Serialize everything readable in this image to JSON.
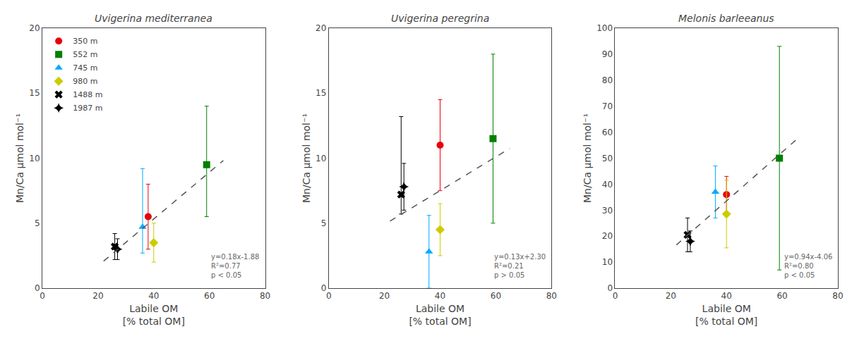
{
  "chart_data": [
    {
      "type": "scatter",
      "title": "Uvigerina mediterranea",
      "xlabel": "Labile OM\n[% total OM]",
      "ylabel": "Mn/Ca μmol mol⁻¹",
      "xlim": [
        0,
        80
      ],
      "xticks": [
        0,
        20,
        40,
        60,
        80
      ],
      "ylim": [
        0,
        20
      ],
      "yticks": [
        0,
        5,
        10,
        15,
        20
      ],
      "grid": false,
      "legend": "upper left",
      "annotations": [
        "y=0.18x-1.88\nR²=0.77\np < 0.05"
      ],
      "series": [
        {
          "name": "350 m",
          "color": "#e8000d",
          "marker": "circle",
          "x": [
            38
          ],
          "values": [
            5.5
          ],
          "yerr_low": [
            2.5
          ],
          "yerr_high": [
            2.5
          ]
        },
        {
          "name": "552 m",
          "color": "#008000",
          "marker": "square",
          "x": [
            59
          ],
          "values": [
            9.5
          ],
          "yerr_low": [
            4.0
          ],
          "yerr_high": [
            4.5
          ]
        },
        {
          "name": "745 m",
          "color": "#00aaff",
          "marker": "triangle-up",
          "x": [
            36
          ],
          "values": [
            4.7
          ],
          "yerr_low": [
            2.0
          ],
          "yerr_high": [
            4.5
          ]
        },
        {
          "name": "980 m",
          "color": "#cccc00",
          "marker": "diamond",
          "x": [
            40
          ],
          "values": [
            3.5
          ],
          "yerr_low": [
            1.5
          ],
          "yerr_high": [
            1.5
          ]
        },
        {
          "name": "1488 m",
          "color": "#000000",
          "marker": "x",
          "x": [
            26
          ],
          "values": [
            3.2
          ],
          "yerr_low": [
            1.0
          ],
          "yerr_high": [
            1.0
          ]
        },
        {
          "name": "1987 m",
          "color": "#000000",
          "marker": "star-diamond",
          "x": [
            27
          ],
          "values": [
            3.0
          ],
          "yerr_low": [
            0.8
          ],
          "yerr_high": [
            0.8
          ]
        },
        {
          "type": "line",
          "line_style": "dashed",
          "color": "#555555",
          "x": [
            22,
            65
          ],
          "values": [
            2.08,
            9.82
          ]
        }
      ]
    },
    {
      "type": "scatter",
      "title": "Uvigerina peregrina",
      "xlabel": "Labile OM\n[% total OM]",
      "ylabel": "Mn/Ca μmol mol⁻¹",
      "xlim": [
        0,
        80
      ],
      "xticks": [
        0,
        20,
        40,
        60,
        80
      ],
      "ylim": [
        0,
        20
      ],
      "yticks": [
        0,
        5,
        10,
        15,
        20
      ],
      "grid": false,
      "annotations": [
        "y=0.13x+2.30\nR²=0.21\np > 0.05"
      ],
      "series": [
        {
          "name": "350 m",
          "color": "#e8000d",
          "marker": "circle",
          "x": [
            40
          ],
          "values": [
            11.0
          ],
          "yerr_low": [
            3.5
          ],
          "yerr_high": [
            3.5
          ]
        },
        {
          "name": "552 m",
          "color": "#008000",
          "marker": "square",
          "x": [
            59
          ],
          "values": [
            11.5
          ],
          "yerr_low": [
            6.5
          ],
          "yerr_high": [
            6.5
          ]
        },
        {
          "name": "745 m",
          "color": "#00aaff",
          "marker": "triangle-up",
          "x": [
            36
          ],
          "values": [
            2.8
          ],
          "yerr_low": [
            2.8
          ],
          "yerr_high": [
            2.8
          ]
        },
        {
          "name": "980 m",
          "color": "#cccc00",
          "marker": "diamond",
          "x": [
            40
          ],
          "values": [
            4.5
          ],
          "yerr_low": [
            2.0
          ],
          "yerr_high": [
            2.0
          ]
        },
        {
          "name": "1488 m",
          "color": "#000000",
          "marker": "x",
          "x": [
            26
          ],
          "values": [
            7.2
          ],
          "yerr_low": [
            1.5
          ],
          "yerr_high": [
            6.0
          ]
        },
        {
          "name": "1987 m",
          "color": "#000000",
          "marker": "star-diamond",
          "x": [
            27
          ],
          "values": [
            7.8
          ],
          "yerr_low": [
            1.8
          ],
          "yerr_high": [
            1.8
          ]
        },
        {
          "type": "line",
          "line_style": "dashed",
          "color": "#555555",
          "x": [
            22,
            65
          ],
          "values": [
            5.16,
            10.75
          ]
        }
      ]
    },
    {
      "type": "scatter",
      "title": "Melonis barleeanus",
      "xlabel": "Labile OM\n[% total OM]",
      "ylabel": "Mn/Ca μmol mol⁻¹",
      "xlim": [
        0,
        80
      ],
      "xticks": [
        0,
        20,
        40,
        60,
        80
      ],
      "ylim": [
        0,
        100
      ],
      "yticks": [
        0,
        10,
        20,
        30,
        40,
        50,
        60,
        70,
        80,
        90,
        100
      ],
      "grid": false,
      "annotations": [
        "y=0.94x-4.06\nR²=0.80\np < 0.05"
      ],
      "series": [
        {
          "name": "350 m",
          "color": "#e8000d",
          "marker": "circle",
          "x": [
            40
          ],
          "values": [
            36.0
          ],
          "yerr_low": [
            7.0
          ],
          "yerr_high": [
            7.0
          ]
        },
        {
          "name": "552 m",
          "color": "#008000",
          "marker": "square",
          "x": [
            59
          ],
          "values": [
            50.0
          ],
          "yerr_low": [
            43.0
          ],
          "yerr_high": [
            43.0
          ]
        },
        {
          "name": "745 m",
          "color": "#00aaff",
          "marker": "triangle-up",
          "x": [
            36
          ],
          "values": [
            37.0
          ],
          "yerr_low": [
            10.0
          ],
          "yerr_high": [
            10.0
          ]
        },
        {
          "name": "980 m",
          "color": "#cccc00",
          "marker": "diamond",
          "x": [
            40
          ],
          "values": [
            28.5
          ],
          "yerr_low": [
            13.0
          ],
          "yerr_high": [
            13.0
          ]
        },
        {
          "name": "1488 m",
          "color": "#000000",
          "marker": "x",
          "x": [
            26
          ],
          "values": [
            20.5
          ],
          "yerr_low": [
            6.5
          ],
          "yerr_high": [
            6.5
          ]
        },
        {
          "name": "1987 m",
          "color": "#000000",
          "marker": "star-diamond",
          "x": [
            27
          ],
          "values": [
            18.0
          ],
          "yerr_low": [
            4.0
          ],
          "yerr_high": [
            4.0
          ]
        },
        {
          "type": "line",
          "line_style": "dashed",
          "color": "#555555",
          "x": [
            22,
            65
          ],
          "values": [
            16.62,
            57.04
          ]
        }
      ]
    }
  ]
}
